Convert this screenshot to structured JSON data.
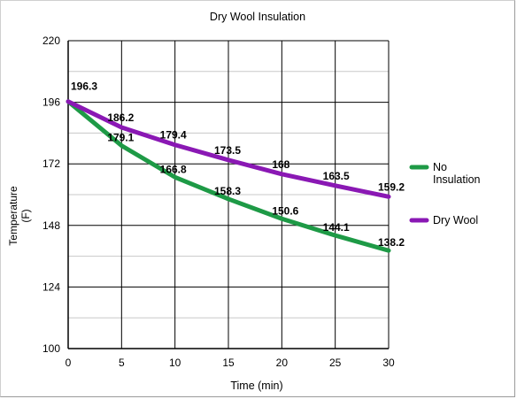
{
  "chart_data": {
    "type": "line",
    "title": "Dry Wool Insulation",
    "xlabel": "Time (min)",
    "ylabel": "Temperature",
    "ylabel_unit": "(F)",
    "x": [
      0,
      5,
      10,
      15,
      20,
      25,
      30
    ],
    "xlim": [
      0,
      30
    ],
    "ylim": [
      100,
      220
    ],
    "x_ticks": [
      "0",
      "5",
      "10",
      "15",
      "20",
      "25",
      "30"
    ],
    "y_ticks": [
      "100",
      "124",
      "148",
      "172",
      "196",
      "220"
    ],
    "grid": true,
    "legend_position": "right",
    "series": [
      {
        "name": "No Insulation",
        "legend_lines": [
          "No",
          "Insulation"
        ],
        "color": "#1e9a46",
        "values": [
          196.3,
          179.1,
          166.8,
          158.3,
          150.6,
          144.1,
          138.2
        ],
        "labels": [
          "196.3",
          "179.1",
          "166.8",
          "158.3",
          "150.6",
          "144.1",
          "138.2"
        ]
      },
      {
        "name": "Dry Wool",
        "color": "#8a18b4",
        "values": [
          196.3,
          186.2,
          179.4,
          173.5,
          168,
          163.5,
          159.2
        ],
        "labels": [
          "196.3",
          "186.2",
          "179.4",
          "173.5",
          "168",
          "163.5",
          "159.2"
        ]
      }
    ]
  }
}
